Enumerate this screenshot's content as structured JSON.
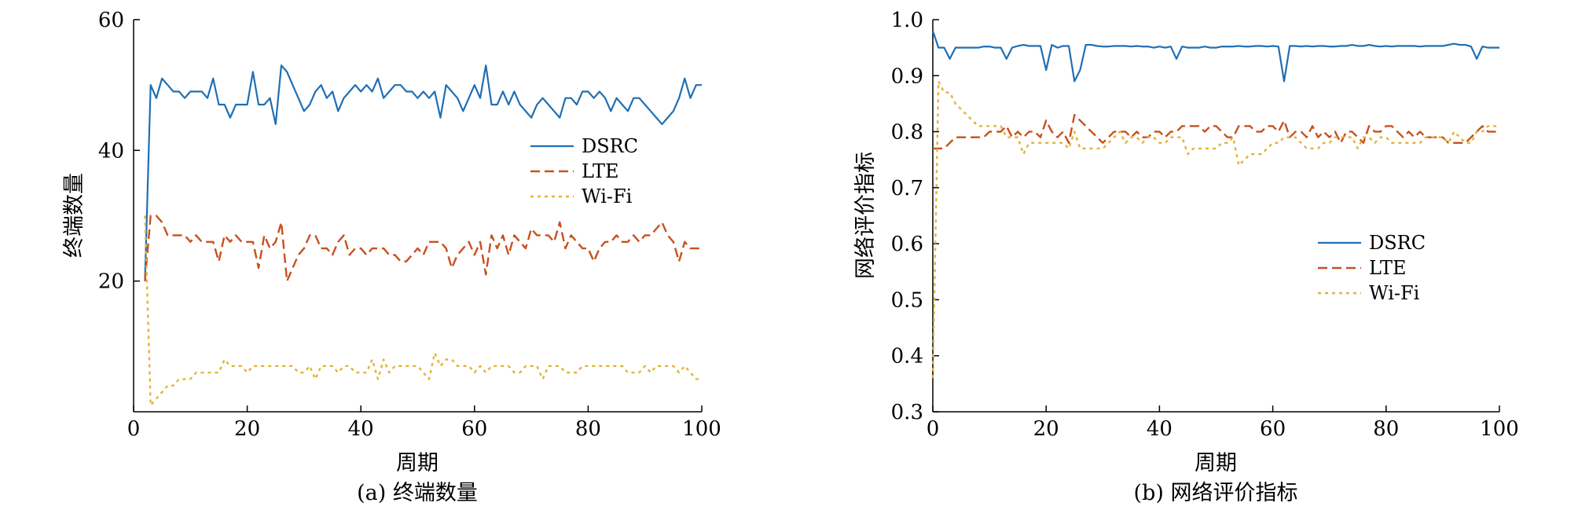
{
  "chart_data": [
    {
      "type": "line",
      "caption": "(a)  终端数量",
      "xlabel": "周期",
      "ylabel": "终端数量",
      "xlim": [
        0,
        100
      ],
      "ylim": [
        0,
        60
      ],
      "xticks": [
        0,
        20,
        40,
        60,
        80,
        100
      ],
      "yticks": [
        20,
        40,
        60
      ],
      "grid": false,
      "legend_position": "center-right",
      "x": [
        2,
        3,
        4,
        5,
        6,
        7,
        8,
        9,
        10,
        11,
        12,
        13,
        14,
        15,
        16,
        17,
        18,
        19,
        20,
        21,
        22,
        23,
        24,
        25,
        26,
        27,
        28,
        29,
        30,
        31,
        32,
        33,
        34,
        35,
        36,
        37,
        38,
        39,
        40,
        41,
        42,
        43,
        44,
        45,
        46,
        47,
        48,
        49,
        50,
        51,
        52,
        53,
        54,
        55,
        56,
        57,
        58,
        59,
        60,
        61,
        62,
        63,
        64,
        65,
        66,
        67,
        68,
        69,
        70,
        71,
        72,
        73,
        74,
        75,
        76,
        77,
        78,
        79,
        80,
        81,
        82,
        83,
        84,
        85,
        86,
        87,
        88,
        89,
        90,
        91,
        92,
        93,
        94,
        95,
        96,
        97,
        98,
        99,
        100
      ],
      "series": [
        {
          "name": "DSRC",
          "color": "#1f6fb4",
          "dash": "solid",
          "values": [
            20,
            50,
            48,
            51,
            50,
            49,
            49,
            48,
            49,
            49,
            49,
            48,
            51,
            47,
            47,
            45,
            47,
            47,
            47,
            52,
            47,
            47,
            48,
            44,
            53,
            52,
            50,
            48,
            46,
            47,
            49,
            50,
            48,
            49,
            46,
            48,
            49,
            50,
            49,
            50,
            49,
            51,
            48,
            49,
            50,
            50,
            49,
            49,
            48,
            49,
            48,
            49,
            45,
            50,
            49,
            48,
            46,
            48,
            50,
            48,
            53,
            47,
            47,
            49,
            47,
            49,
            47,
            46,
            45,
            47,
            48,
            47,
            46,
            45,
            48,
            48,
            47,
            49,
            49,
            48,
            49,
            48,
            46,
            48,
            47,
            46,
            48,
            48,
            47,
            46,
            45,
            44,
            45,
            46,
            48,
            51,
            48,
            50,
            50
          ]
        },
        {
          "name": "LTE",
          "color": "#c8501e",
          "dash": "dashed",
          "values": [
            20,
            30,
            30,
            29,
            27,
            27,
            27,
            27,
            26,
            27,
            26,
            26,
            26,
            23,
            27,
            26,
            27,
            26,
            26,
            26,
            22,
            27,
            25,
            26,
            29,
            20,
            22,
            24,
            25,
            27,
            27,
            25,
            25,
            24,
            26,
            27,
            24,
            25,
            25,
            24,
            25,
            25,
            25,
            24,
            24,
            23,
            23,
            24,
            25,
            24,
            26,
            26,
            26,
            25,
            22,
            24,
            25,
            26,
            24,
            26,
            21,
            27,
            25,
            27,
            24,
            27,
            26,
            25,
            28,
            27,
            27,
            27,
            26,
            29,
            25,
            27,
            26,
            25,
            25,
            23,
            25,
            26,
            26,
            27,
            26,
            26,
            27,
            26,
            27,
            27,
            28,
            29,
            27,
            26,
            23,
            26,
            25,
            25,
            25
          ]
        },
        {
          "name": "Wi-Fi",
          "color": "#e3b336",
          "dash": "dotted",
          "values": [
            30,
            1,
            2,
            3,
            4,
            4,
            5,
            5,
            5,
            6,
            6,
            6,
            6,
            6,
            8,
            7,
            7,
            7,
            6,
            7,
            7,
            7,
            7,
            7,
            7,
            7,
            7,
            6,
            6,
            7,
            5,
            7,
            7,
            7,
            6,
            7,
            7,
            6,
            6,
            6,
            8,
            5,
            8,
            6,
            7,
            7,
            7,
            7,
            7,
            6,
            5,
            9,
            7,
            8,
            8,
            7,
            7,
            7,
            6,
            7,
            6,
            7,
            7,
            7,
            7,
            6,
            6,
            7,
            7,
            7,
            5,
            7,
            7,
            7,
            6,
            6,
            6,
            7,
            7,
            7,
            7,
            7,
            7,
            7,
            7,
            6,
            6,
            6,
            7,
            6,
            7,
            7,
            7,
            7,
            6,
            7,
            6,
            5,
            5
          ]
        }
      ]
    },
    {
      "type": "line",
      "caption": "(b)  网络评价指标",
      "xlabel": "周期",
      "ylabel": "网络评价指标",
      "xlim": [
        0,
        100
      ],
      "ylim": [
        0.3,
        1.0
      ],
      "xticks": [
        0,
        20,
        40,
        60,
        80,
        100
      ],
      "yticks": [
        0.3,
        0.4,
        0.5,
        0.6,
        0.7,
        0.8,
        0.9,
        1.0
      ],
      "ytick_labels": [
        "0.3",
        "0.4",
        "0.5",
        "0.6",
        "0.7",
        "0.8",
        "0.9",
        "1.0"
      ],
      "grid": false,
      "legend_position": "center-right",
      "x": [
        0,
        1,
        2,
        3,
        4,
        5,
        6,
        7,
        8,
        9,
        10,
        11,
        12,
        13,
        14,
        15,
        16,
        17,
        18,
        19,
        20,
        21,
        22,
        23,
        24,
        25,
        26,
        27,
        28,
        29,
        30,
        31,
        32,
        33,
        34,
        35,
        36,
        37,
        38,
        39,
        40,
        41,
        42,
        43,
        44,
        45,
        46,
        47,
        48,
        49,
        50,
        51,
        52,
        53,
        54,
        55,
        56,
        57,
        58,
        59,
        60,
        61,
        62,
        63,
        64,
        65,
        66,
        67,
        68,
        69,
        70,
        71,
        72,
        73,
        74,
        75,
        76,
        77,
        78,
        79,
        80,
        81,
        82,
        83,
        84,
        85,
        86,
        87,
        88,
        89,
        90,
        91,
        92,
        93,
        94,
        95,
        96,
        97,
        98,
        99,
        100
      ],
      "series": [
        {
          "name": "DSRC",
          "color": "#1f6fb4",
          "dash": "solid",
          "values": [
            0.98,
            0.95,
            0.95,
            0.93,
            0.95,
            0.95,
            0.95,
            0.95,
            0.95,
            0.952,
            0.952,
            0.95,
            0.95,
            0.93,
            0.95,
            0.953,
            0.955,
            0.953,
            0.953,
            0.953,
            0.91,
            0.955,
            0.95,
            0.953,
            0.953,
            0.89,
            0.91,
            0.955,
            0.955,
            0.953,
            0.952,
            0.952,
            0.953,
            0.953,
            0.953,
            0.952,
            0.953,
            0.952,
            0.952,
            0.95,
            0.952,
            0.95,
            0.952,
            0.93,
            0.952,
            0.95,
            0.95,
            0.95,
            0.952,
            0.95,
            0.95,
            0.952,
            0.952,
            0.952,
            0.953,
            0.952,
            0.952,
            0.953,
            0.953,
            0.952,
            0.953,
            0.952,
            0.89,
            0.953,
            0.953,
            0.952,
            0.953,
            0.952,
            0.953,
            0.953,
            0.952,
            0.952,
            0.953,
            0.953,
            0.955,
            0.953,
            0.953,
            0.955,
            0.953,
            0.952,
            0.953,
            0.952,
            0.953,
            0.953,
            0.953,
            0.953,
            0.952,
            0.953,
            0.953,
            0.953,
            0.953,
            0.955,
            0.957,
            0.955,
            0.955,
            0.952,
            0.93,
            0.952,
            0.95,
            0.95,
            0.95
          ]
        },
        {
          "name": "LTE",
          "color": "#c8501e",
          "dash": "dashed",
          "values": [
            0.77,
            0.77,
            0.77,
            0.78,
            0.79,
            0.79,
            0.79,
            0.79,
            0.79,
            0.79,
            0.8,
            0.8,
            0.8,
            0.81,
            0.79,
            0.8,
            0.79,
            0.8,
            0.8,
            0.79,
            0.82,
            0.8,
            0.79,
            0.8,
            0.78,
            0.83,
            0.82,
            0.81,
            0.8,
            0.79,
            0.78,
            0.79,
            0.8,
            0.8,
            0.8,
            0.79,
            0.8,
            0.79,
            0.79,
            0.8,
            0.8,
            0.79,
            0.8,
            0.8,
            0.81,
            0.81,
            0.81,
            0.81,
            0.8,
            0.81,
            0.81,
            0.8,
            0.79,
            0.79,
            0.81,
            0.81,
            0.81,
            0.8,
            0.8,
            0.81,
            0.81,
            0.8,
            0.82,
            0.79,
            0.8,
            0.8,
            0.79,
            0.81,
            0.79,
            0.8,
            0.79,
            0.8,
            0.78,
            0.8,
            0.8,
            0.79,
            0.78,
            0.81,
            0.8,
            0.8,
            0.81,
            0.81,
            0.8,
            0.79,
            0.8,
            0.79,
            0.8,
            0.79,
            0.79,
            0.79,
            0.79,
            0.78,
            0.78,
            0.78,
            0.78,
            0.79,
            0.8,
            0.81,
            0.8,
            0.8,
            0.8
          ]
        },
        {
          "name": "Wi-Fi",
          "color": "#e3b336",
          "dash": "dotted",
          "values": [
            0.36,
            0.89,
            0.87,
            0.87,
            0.85,
            0.84,
            0.83,
            0.82,
            0.81,
            0.81,
            0.81,
            0.81,
            0.81,
            0.79,
            0.79,
            0.79,
            0.76,
            0.78,
            0.78,
            0.78,
            0.78,
            0.78,
            0.78,
            0.78,
            0.77,
            0.8,
            0.77,
            0.77,
            0.77,
            0.77,
            0.77,
            0.78,
            0.79,
            0.8,
            0.78,
            0.79,
            0.79,
            0.78,
            0.79,
            0.79,
            0.78,
            0.78,
            0.79,
            0.79,
            0.79,
            0.76,
            0.77,
            0.77,
            0.77,
            0.77,
            0.77,
            0.78,
            0.78,
            0.79,
            0.74,
            0.75,
            0.76,
            0.76,
            0.76,
            0.77,
            0.78,
            0.78,
            0.79,
            0.79,
            0.79,
            0.78,
            0.77,
            0.77,
            0.77,
            0.78,
            0.78,
            0.79,
            0.79,
            0.79,
            0.79,
            0.77,
            0.79,
            0.79,
            0.78,
            0.79,
            0.79,
            0.78,
            0.78,
            0.78,
            0.78,
            0.78,
            0.78,
            0.79,
            0.79,
            0.79,
            0.79,
            0.78,
            0.8,
            0.79,
            0.78,
            0.78,
            0.8,
            0.8,
            0.81,
            0.81,
            0.81
          ]
        }
      ]
    }
  ]
}
